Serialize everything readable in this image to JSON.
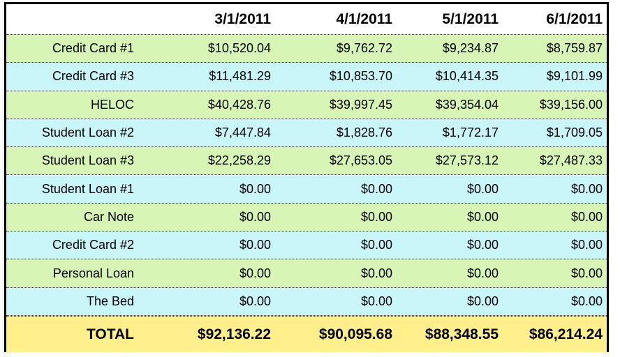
{
  "colors": {
    "row_green": "#d7f5b4",
    "row_blue": "#c9f6f8",
    "total_yellow": "#fff08c"
  },
  "header": {
    "label": "",
    "dates": [
      "3/1/2011",
      "4/1/2011",
      "5/1/2011",
      "6/1/2011"
    ]
  },
  "rows": [
    {
      "label": "Credit Card #1",
      "values": [
        "$10,520.04",
        "$9,762.72",
        "$9,234.87",
        "$8,759.87"
      ]
    },
    {
      "label": "Credit Card #3",
      "values": [
        "$11,481.29",
        "$10,853.70",
        "$10,414.35",
        "$9,101.99"
      ]
    },
    {
      "label": "HELOC",
      "values": [
        "$40,428.76",
        "$39,997.45",
        "$39,354.04",
        "$39,156.00"
      ]
    },
    {
      "label": "Student Loan #2",
      "values": [
        "$7,447.84",
        "$1,828.76",
        "$1,772.17",
        "$1,709.05"
      ]
    },
    {
      "label": "Student Loan #3",
      "values": [
        "$22,258.29",
        "$27,653.05",
        "$27,573.12",
        "$27,487.33"
      ]
    },
    {
      "label": "Student Loan #1",
      "values": [
        "$0.00",
        "$0.00",
        "$0.00",
        "$0.00"
      ]
    },
    {
      "label": "Car Note",
      "values": [
        "$0.00",
        "$0.00",
        "$0.00",
        "$0.00"
      ]
    },
    {
      "label": "Credit Card #2",
      "values": [
        "$0.00",
        "$0.00",
        "$0.00",
        "$0.00"
      ]
    },
    {
      "label": "Personal Loan",
      "values": [
        "$0.00",
        "$0.00",
        "$0.00",
        "$0.00"
      ]
    },
    {
      "label": "The Bed",
      "values": [
        "$0.00",
        "$0.00",
        "$0.00",
        "$0.00"
      ]
    }
  ],
  "total": {
    "label": "TOTAL",
    "values": [
      "$92,136.22",
      "$90,095.68",
      "$88,348.55",
      "$86,214.24"
    ]
  }
}
